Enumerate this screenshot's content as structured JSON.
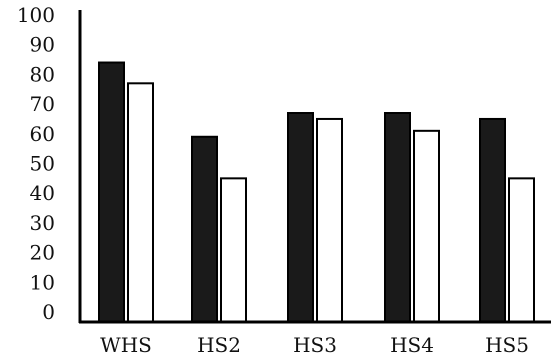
{
  "chart_data": {
    "type": "bar",
    "categories": [
      "WHS",
      "HS2",
      "HS3",
      "HS4",
      "HS5"
    ],
    "series": [
      {
        "values": [
          84,
          59,
          67,
          67,
          65
        ],
        "color": "#1a1a1a"
      },
      {
        "values": [
          77,
          45,
          65,
          61,
          45
        ],
        "color": "#ffffff"
      }
    ],
    "yticks": [
      "0",
      "10",
      "20",
      "30",
      "40",
      "50",
      "60",
      "70",
      "80",
      "90",
      "100"
    ],
    "ylim": [
      0,
      100
    ],
    "grid": false,
    "legend": "none",
    "title": "",
    "xlabel": "",
    "ylabel": ""
  }
}
